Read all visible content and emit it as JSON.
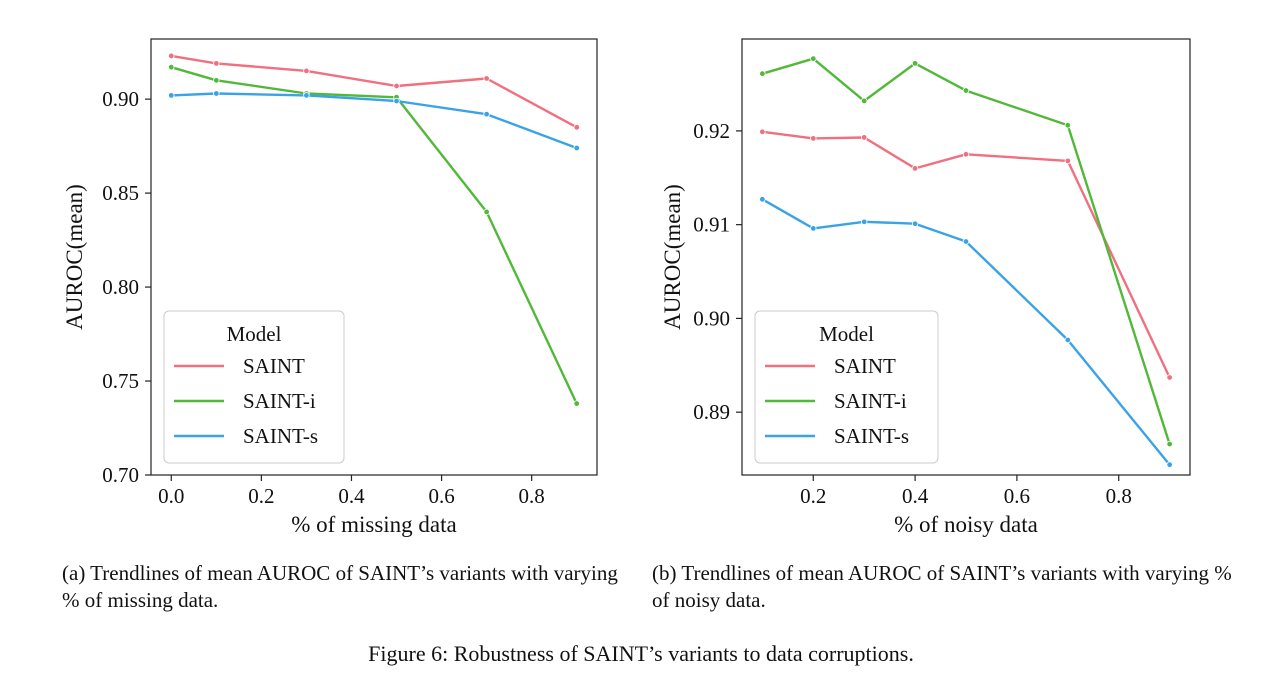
{
  "colors": {
    "SAINT": "#f0707f",
    "SAINT-i": "#52b83a",
    "SAINT-s": "#3aa3e8"
  },
  "chart_data": [
    {
      "type": "line",
      "xlabel": "% of missing data",
      "ylabel": "AUROC(mean)",
      "xlim": [
        -0.045,
        0.945
      ],
      "ylim": [
        0.7,
        0.932
      ],
      "xticks": [
        0.0,
        0.2,
        0.4,
        0.6,
        0.8
      ],
      "xtick_labels": [
        "0.0",
        "0.2",
        "0.4",
        "0.6",
        "0.8"
      ],
      "yticks": [
        0.7,
        0.75,
        0.8,
        0.85,
        0.9
      ],
      "ytick_labels": [
        "0.70",
        "0.75",
        "0.80",
        "0.85",
        "0.90"
      ],
      "grid": false,
      "legend": {
        "title": "Model",
        "placement": "lower-left"
      },
      "x": [
        0.0,
        0.1,
        0.3,
        0.5,
        0.7,
        0.9
      ],
      "series": [
        {
          "name": "SAINT",
          "values": [
            0.923,
            0.919,
            0.915,
            0.907,
            0.911,
            0.885
          ]
        },
        {
          "name": "SAINT-i",
          "values": [
            0.917,
            0.91,
            0.903,
            0.901,
            0.84,
            0.738
          ]
        },
        {
          "name": "SAINT-s",
          "values": [
            0.902,
            0.903,
            0.902,
            0.899,
            0.892,
            0.874
          ]
        }
      ]
    },
    {
      "type": "line",
      "xlabel": "% of noisy data",
      "ylabel": "AUROC(mean)",
      "xlim": [
        0.06,
        0.94
      ],
      "ylim": [
        0.8833,
        0.9298
      ],
      "xticks": [
        0.2,
        0.4,
        0.6,
        0.8
      ],
      "xtick_labels": [
        "0.2",
        "0.4",
        "0.6",
        "0.8"
      ],
      "yticks": [
        0.89,
        0.9,
        0.91,
        0.92
      ],
      "ytick_labels": [
        "0.89",
        "0.90",
        "0.91",
        "0.92"
      ],
      "grid": false,
      "legend": {
        "title": "Model",
        "placement": "lower-left"
      },
      "x": [
        0.1,
        0.2,
        0.3,
        0.4,
        0.5,
        0.7,
        0.9
      ],
      "series": [
        {
          "name": "SAINT",
          "values": [
            0.9199,
            0.9192,
            0.9193,
            0.916,
            0.9175,
            0.9168,
            0.8937
          ]
        },
        {
          "name": "SAINT-i",
          "values": [
            0.9261,
            0.9277,
            0.9232,
            0.9272,
            0.9243,
            0.9206,
            0.8866
          ]
        },
        {
          "name": "SAINT-s",
          "values": [
            0.9127,
            0.9096,
            0.9103,
            0.9101,
            0.9082,
            0.8977,
            0.8844
          ]
        }
      ]
    }
  ],
  "captions": {
    "a": "(a) Trendlines of mean AUROC of SAINT’s variants with varying % of missing data.",
    "b": "(b) Trendlines of mean AUROC of SAINT’s variants with varying % of noisy data.",
    "figure": "Figure 6: Robustness of SAINT’s variants to data corruptions."
  }
}
